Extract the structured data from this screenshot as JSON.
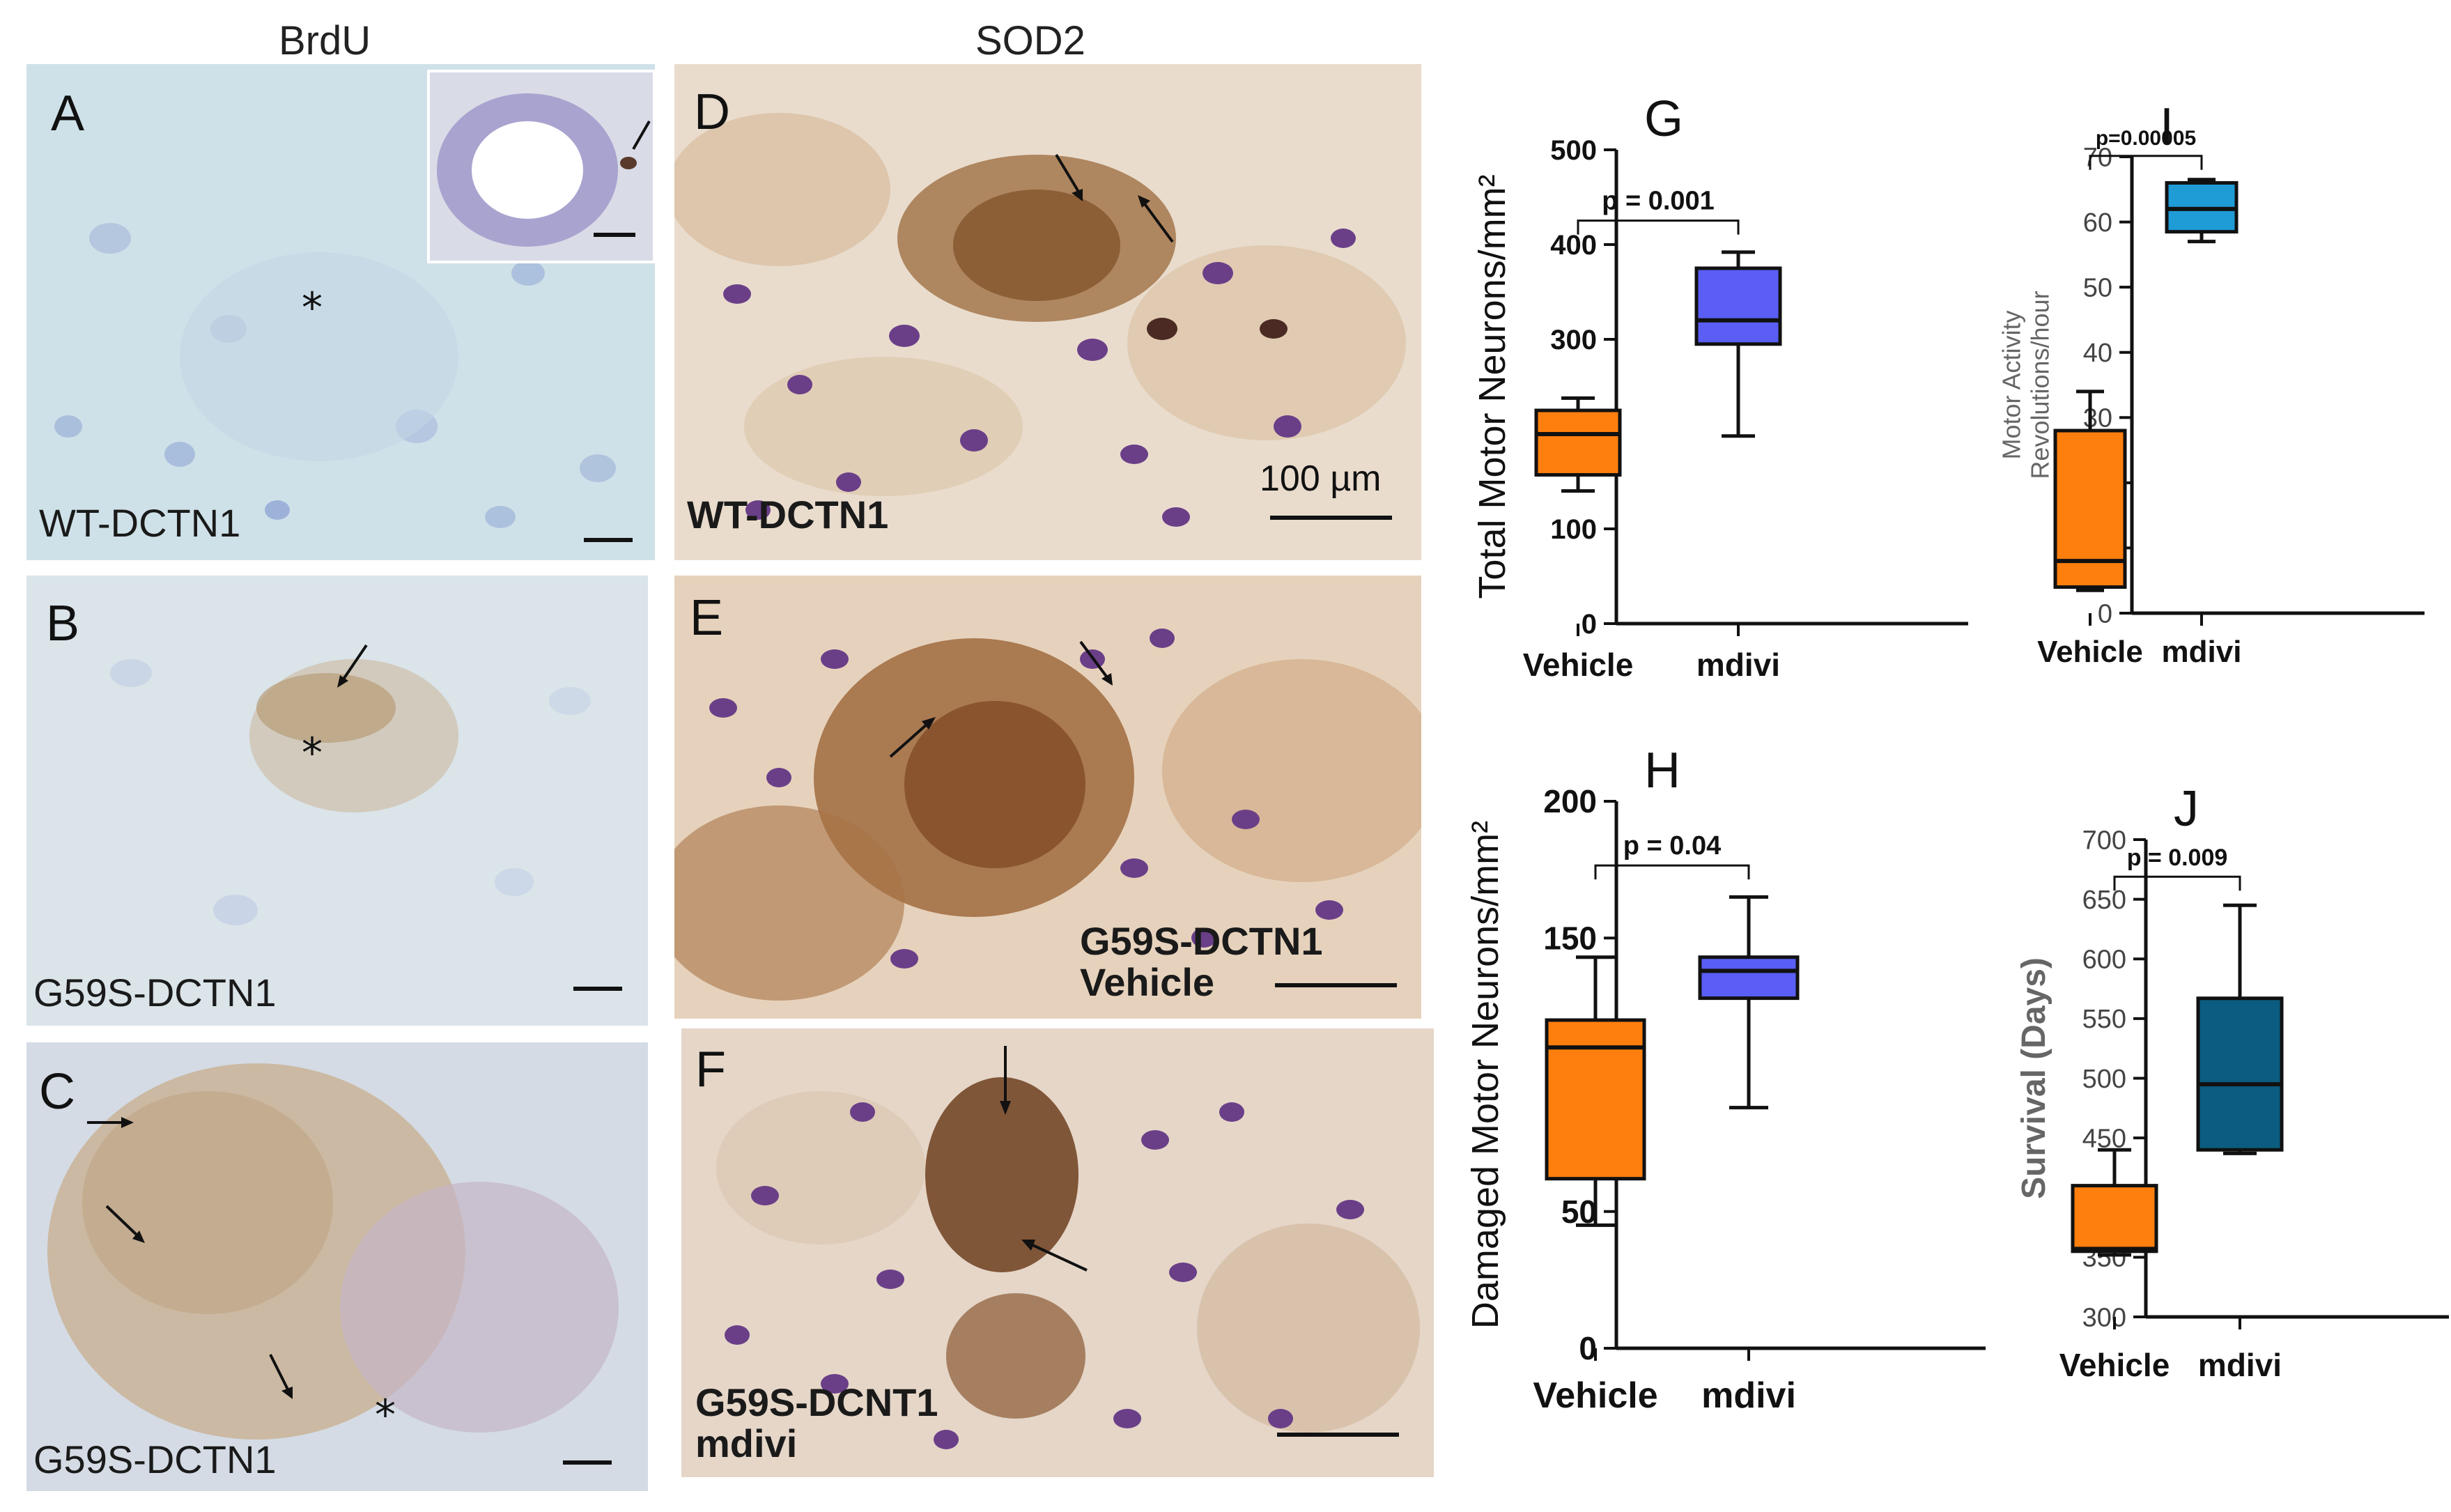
{
  "column_titles": {
    "brdu": "BrdU",
    "sod2": "SOD2"
  },
  "micrographs": [
    {
      "id": "A",
      "label": "A",
      "caption": "WT-DCTN1",
      "bg": "#cfe1e8"
    },
    {
      "id": "B",
      "label": "B",
      "caption": "G59S-DCTN1",
      "bg": "#d9e3e8"
    },
    {
      "id": "C",
      "label": "C",
      "caption": "G59S-DCTN1",
      "bg": "#d3dbe4"
    },
    {
      "id": "D",
      "label": "D",
      "caption": "WT-DCTN1",
      "bg": "#e8d8c8"
    },
    {
      "id": "E",
      "label": "E",
      "caption": "G59S-DCTN1\nVehicle",
      "bg": "#e2cbb4"
    },
    {
      "id": "F",
      "label": "F",
      "caption": "G59S-DCNT1\nmdivi",
      "bg": "#e3d2c4"
    }
  ],
  "scale_label": "100 µm",
  "asterisk": "*",
  "colors": {
    "vehicle": "#ff7f0e",
    "mdivi_G": "#5a5ef5",
    "mdivi_H": "#5a5ef5",
    "mdivi_I": "#1f9bd6",
    "mdivi_J": "#0b5c80"
  },
  "chart_data": [
    {
      "id": "G",
      "type": "box",
      "label": "G",
      "ylabel": "Total Motor Neurons/mm²",
      "ylim": [
        0,
        500
      ],
      "yticks": [
        0,
        100,
        200,
        300,
        400,
        500
      ],
      "categories": [
        "Vehicle",
        "mdivi"
      ],
      "boxes": [
        {
          "name": "Vehicle",
          "min": 140,
          "q1": 157,
          "median": 200,
          "q3": 225,
          "max": 238
        },
        {
          "name": "mdivi",
          "min": 198,
          "q1": 295,
          "median": 320,
          "q3": 375,
          "max": 392
        }
      ],
      "annotation": "p = 0.001"
    },
    {
      "id": "H",
      "type": "box",
      "label": "H",
      "ylabel": "Damaged Motor Neurons/mm²",
      "ylim": [
        0,
        200
      ],
      "yticks": [
        0,
        50,
        100,
        150,
        200
      ],
      "categories": [
        "Vehicle",
        "mdivi"
      ],
      "boxes": [
        {
          "name": "Vehicle",
          "min": 45,
          "q1": 62,
          "median": 110,
          "q3": 120,
          "max": 143
        },
        {
          "name": "mdivi",
          "min": 88,
          "q1": 128,
          "median": 138,
          "q3": 143,
          "max": 165
        }
      ],
      "annotation": "p = 0.04"
    },
    {
      "id": "I",
      "type": "box",
      "label": "I",
      "ylabel": "Motor Activity\nRevolutions/hour",
      "ylim": [
        0,
        70
      ],
      "yticks": [
        0,
        10,
        20,
        30,
        40,
        50,
        60,
        70
      ],
      "categories": [
        "Vehicle",
        "mdivi"
      ],
      "boxes": [
        {
          "name": "Vehicle",
          "min": 3.5,
          "q1": 4,
          "median": 8,
          "q3": 28,
          "max": 34
        },
        {
          "name": "mdivi",
          "min": 57,
          "q1": 58.5,
          "median": 62,
          "q3": 66,
          "max": 66.5
        }
      ],
      "annotation": "p=0.00005"
    },
    {
      "id": "J",
      "type": "box",
      "label": "J",
      "ylabel": "Survival  (Days)",
      "ylim": [
        300,
        700
      ],
      "yticks": [
        300,
        350,
        400,
        450,
        500,
        550,
        600,
        650,
        700
      ],
      "categories": [
        "Vehicle",
        "mdivi"
      ],
      "boxes": [
        {
          "name": "Vehicle",
          "min": 352,
          "q1": 355,
          "median": 357,
          "q3": 410,
          "max": 440
        },
        {
          "name": "mdivi",
          "min": 437,
          "q1": 440,
          "median": 495,
          "q3": 567,
          "max": 645
        }
      ],
      "annotation": "p = 0.009"
    }
  ]
}
